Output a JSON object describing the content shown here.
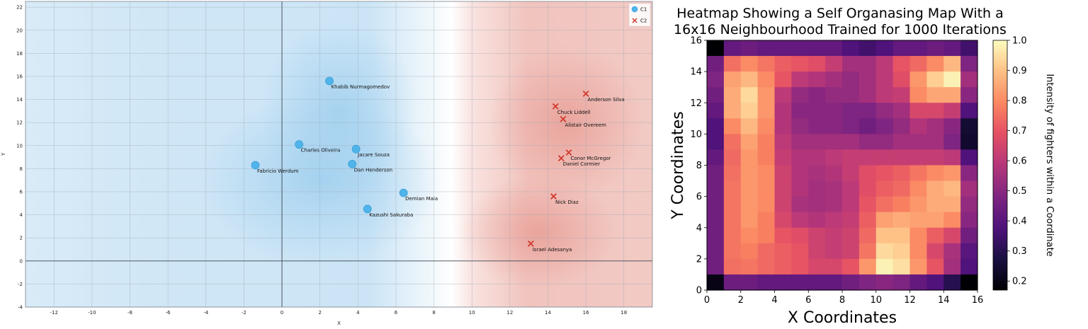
{
  "chart_data": [
    {
      "type": "scatter",
      "title": "",
      "xlabel": "X",
      "ylabel": "Y",
      "xlim": [
        -13.5,
        19.5
      ],
      "ylim": [
        -4,
        22.5
      ],
      "x_ticks": [
        -12,
        -10,
        -8,
        -6,
        -4,
        -2,
        0,
        2,
        4,
        6,
        8,
        10,
        12,
        14,
        16,
        18
      ],
      "y_ticks": [
        -4,
        -2,
        0,
        2,
        4,
        6,
        8,
        10,
        12,
        14,
        16,
        18,
        20,
        22
      ],
      "grid": true,
      "legend": "top-right",
      "background": "two-class decision regions: blue (C1) left, red (C2) right, boundary near x=8",
      "series": [
        {
          "name": "C1",
          "marker": "circle",
          "color": "#4fb4ea",
          "points": [
            {
              "x": 2.5,
              "y": 15.6,
              "label": "Khabib Nurmagomedov"
            },
            {
              "x": 0.9,
              "y": 10.1,
              "label": "Charles Oliveira"
            },
            {
              "x": 3.9,
              "y": 9.7,
              "label": "Jacare Souza"
            },
            {
              "x": -1.4,
              "y": 8.3,
              "label": "Fabricio Werdum"
            },
            {
              "x": 3.7,
              "y": 8.4,
              "label": "Dan Henderson"
            },
            {
              "x": 6.4,
              "y": 5.9,
              "label": "Demian Maia"
            },
            {
              "x": 4.5,
              "y": 4.5,
              "label": "Kazushi Sakuraba"
            }
          ]
        },
        {
          "name": "C2",
          "marker": "x",
          "color": "#d03a2e",
          "points": [
            {
              "x": 16.0,
              "y": 14.5,
              "label": "Anderson Silva"
            },
            {
              "x": 14.4,
              "y": 13.4,
              "label": "Chuck Liddell"
            },
            {
              "x": 14.8,
              "y": 12.3,
              "label": "Alistair Overeem"
            },
            {
              "x": 15.1,
              "y": 9.4,
              "label": "Conor McGregor"
            },
            {
              "x": 14.7,
              "y": 8.9,
              "label": "Daniel Cormier"
            },
            {
              "x": 14.3,
              "y": 5.6,
              "label": "Nick Diaz"
            },
            {
              "x": 13.1,
              "y": 1.5,
              "label": "Israel Adesanya"
            }
          ]
        }
      ]
    },
    {
      "type": "heatmap",
      "title": "Heatmap Showing a Self Organasing Map With a 16x16 Neighbourhood Trained for 1000 Iterations",
      "xlabel": "X Coordinates",
      "ylabel": "Y Coordinates",
      "xlim": [
        0,
        16
      ],
      "ylim": [
        0,
        16
      ],
      "x_ticks": [
        0,
        2,
        4,
        6,
        8,
        10,
        12,
        14,
        16
      ],
      "y_ticks": [
        0,
        2,
        4,
        6,
        8,
        10,
        12,
        14,
        16
      ],
      "colormap": "magma",
      "colorbar": {
        "label": "Intensity of fighters within a Coordinate",
        "range": [
          0.17,
          1.0
        ],
        "ticks": [
          "0.2",
          "0.3",
          "0.4",
          "0.5",
          "0.6",
          "0.7",
          "0.8",
          "0.9",
          "1.0"
        ],
        "tick_values": [
          0.2,
          0.3,
          0.4,
          0.5,
          0.6,
          0.7,
          0.8,
          0.9,
          1.0
        ]
      },
      "values_rows_top_to_bottom": [
        [
          0.17,
          0.42,
          0.44,
          0.42,
          0.42,
          0.42,
          0.42,
          0.42,
          0.38,
          0.35,
          0.38,
          0.42,
          0.42,
          0.44,
          0.42,
          0.35
        ],
        [
          0.45,
          0.75,
          0.8,
          0.76,
          0.72,
          0.7,
          0.68,
          0.62,
          0.55,
          0.55,
          0.6,
          0.7,
          0.74,
          0.8,
          0.88,
          0.48
        ],
        [
          0.48,
          0.84,
          0.88,
          0.8,
          0.7,
          0.6,
          0.58,
          0.55,
          0.52,
          0.55,
          0.6,
          0.68,
          0.82,
          0.92,
          0.98,
          0.55
        ],
        [
          0.45,
          0.86,
          0.94,
          0.82,
          0.6,
          0.52,
          0.5,
          0.52,
          0.52,
          0.55,
          0.6,
          0.62,
          0.8,
          0.85,
          0.85,
          0.5
        ],
        [
          0.42,
          0.86,
          0.92,
          0.82,
          0.58,
          0.5,
          0.5,
          0.5,
          0.48,
          0.48,
          0.52,
          0.55,
          0.66,
          0.66,
          0.62,
          0.38
        ],
        [
          0.38,
          0.8,
          0.88,
          0.8,
          0.58,
          0.52,
          0.5,
          0.5,
          0.48,
          0.45,
          0.48,
          0.52,
          0.58,
          0.55,
          0.5,
          0.25
        ],
        [
          0.38,
          0.75,
          0.84,
          0.78,
          0.6,
          0.55,
          0.55,
          0.55,
          0.55,
          0.52,
          0.52,
          0.55,
          0.55,
          0.55,
          0.48,
          0.24
        ],
        [
          0.42,
          0.74,
          0.82,
          0.78,
          0.62,
          0.58,
          0.58,
          0.6,
          0.62,
          0.62,
          0.62,
          0.62,
          0.62,
          0.62,
          0.6,
          0.38
        ],
        [
          0.45,
          0.75,
          0.82,
          0.8,
          0.64,
          0.58,
          0.56,
          0.58,
          0.62,
          0.68,
          0.7,
          0.72,
          0.76,
          0.8,
          0.82,
          0.5
        ],
        [
          0.45,
          0.76,
          0.82,
          0.8,
          0.64,
          0.58,
          0.55,
          0.56,
          0.6,
          0.68,
          0.72,
          0.74,
          0.8,
          0.86,
          0.88,
          0.55
        ],
        [
          0.45,
          0.76,
          0.82,
          0.8,
          0.64,
          0.56,
          0.55,
          0.56,
          0.6,
          0.7,
          0.75,
          0.78,
          0.82,
          0.86,
          0.86,
          0.52
        ],
        [
          0.45,
          0.76,
          0.82,
          0.78,
          0.66,
          0.6,
          0.58,
          0.6,
          0.62,
          0.72,
          0.84,
          0.86,
          0.84,
          0.84,
          0.8,
          0.5
        ],
        [
          0.45,
          0.76,
          0.8,
          0.78,
          0.7,
          0.68,
          0.64,
          0.62,
          0.64,
          0.74,
          0.9,
          0.9,
          0.8,
          0.72,
          0.66,
          0.45
        ],
        [
          0.45,
          0.76,
          0.78,
          0.74,
          0.72,
          0.7,
          0.64,
          0.62,
          0.64,
          0.76,
          0.94,
          0.92,
          0.8,
          0.66,
          0.56,
          0.4
        ],
        [
          0.45,
          0.75,
          0.76,
          0.74,
          0.72,
          0.7,
          0.66,
          0.66,
          0.7,
          0.82,
          0.98,
          0.95,
          0.82,
          0.7,
          0.55,
          0.38
        ],
        [
          0.2,
          0.44,
          0.44,
          0.42,
          0.42,
          0.42,
          0.42,
          0.42,
          0.45,
          0.48,
          0.5,
          0.48,
          0.42,
          0.38,
          0.3,
          0.17
        ]
      ]
    }
  ]
}
